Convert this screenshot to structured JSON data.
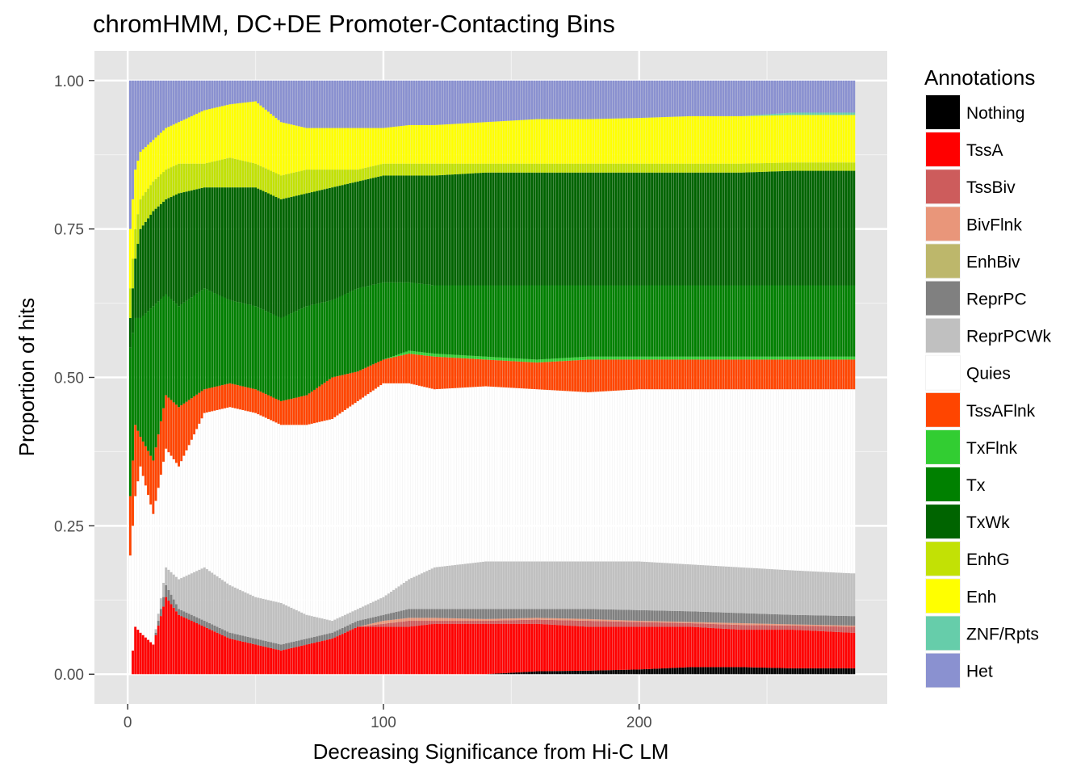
{
  "colors": {
    "panel_bg": "#E5E5E5",
    "grid_major": "#FFFFFF",
    "axis_text": "#4D4D4D",
    "text": "#000000"
  },
  "chart_data": {
    "type": "bar",
    "stacked": true,
    "stacked_to_one": true,
    "title": "chromHMM, DC+DE Promoter-Contacting Bins",
    "xlabel": "Decreasing Significance from Hi-C LM",
    "ylabel": "Proportion of hits",
    "xlim": [
      -13,
      297
    ],
    "ylim": [
      -0.05,
      1.05
    ],
    "x_ticks": [
      0,
      100,
      200
    ],
    "x_tick_labels": [
      "0",
      "100",
      "200"
    ],
    "y_ticks": [
      0,
      0.25,
      0.5,
      0.75,
      1
    ],
    "y_tick_labels": [
      "0.00",
      "0.25",
      "0.50",
      "0.75",
      "1.00"
    ],
    "n_bars": 284,
    "legend": {
      "title": "Annotations",
      "position": "right"
    },
    "series": [
      {
        "name": "Nothing",
        "color": "#000000"
      },
      {
        "name": "TssA",
        "color": "#FF0000"
      },
      {
        "name": "TssBiv",
        "color": "#CD5C5C"
      },
      {
        "name": "BivFlnk",
        "color": "#E9967A"
      },
      {
        "name": "EnhBiv",
        "color": "#BDB76B"
      },
      {
        "name": "ReprPC",
        "color": "#808080"
      },
      {
        "name": "ReprPCWk",
        "color": "#C0C0C0"
      },
      {
        "name": "Quies",
        "color": "#FFFFFF"
      },
      {
        "name": "TssAFlnk",
        "color": "#FF4500"
      },
      {
        "name": "TxFlnk",
        "color": "#32CD32"
      },
      {
        "name": "Tx",
        "color": "#008000"
      },
      {
        "name": "TxWk",
        "color": "#006400"
      },
      {
        "name": "EnhG",
        "color": "#C2E105"
      },
      {
        "name": "Enh",
        "color": "#FFFF00"
      },
      {
        "name": "ZNF/Rpts",
        "color": "#66CDAA"
      },
      {
        "name": "Het",
        "color": "#8A91D0"
      }
    ],
    "cumulative_boundaries_at_x": {
      "x": [
        1,
        3,
        5,
        10,
        15,
        20,
        30,
        40,
        50,
        60,
        70,
        80,
        90,
        100,
        110,
        120,
        140,
        160,
        180,
        200,
        220,
        240,
        260,
        283
      ],
      "Nothing": [
        0,
        0,
        0,
        0,
        0,
        0,
        0,
        0,
        0,
        0,
        0,
        0,
        0,
        0,
        0,
        0,
        0,
        0.005,
        0.006,
        0.008,
        0.012,
        0.012,
        0.01,
        0.01
      ],
      "TssA": [
        0,
        0.08,
        0.07,
        0.05,
        0.13,
        0.1,
        0.08,
        0.06,
        0.05,
        0.04,
        0.05,
        0.06,
        0.08,
        0.08,
        0.08,
        0.085,
        0.085,
        0.085,
        0.08,
        0.08,
        0.08,
        0.075,
        0.075,
        0.07
      ],
      "TssBiv": [
        0,
        0.08,
        0.07,
        0.05,
        0.13,
        0.1,
        0.08,
        0.06,
        0.05,
        0.04,
        0.05,
        0.06,
        0.08,
        0.085,
        0.09,
        0.09,
        0.09,
        0.092,
        0.09,
        0.088,
        0.086,
        0.083,
        0.082,
        0.08
      ],
      "BivFlnk": [
        0,
        0.08,
        0.07,
        0.05,
        0.13,
        0.1,
        0.08,
        0.06,
        0.05,
        0.04,
        0.05,
        0.06,
        0.08,
        0.09,
        0.095,
        0.095,
        0.093,
        0.095,
        0.093,
        0.09,
        0.088,
        0.086,
        0.084,
        0.082
      ],
      "EnhBiv": [
        0,
        0.08,
        0.07,
        0.05,
        0.13,
        0.1,
        0.08,
        0.06,
        0.05,
        0.04,
        0.05,
        0.06,
        0.08,
        0.09,
        0.095,
        0.095,
        0.093,
        0.095,
        0.093,
        0.09,
        0.088,
        0.086,
        0.084,
        0.082
      ],
      "ReprPC": [
        0,
        0.08,
        0.07,
        0.05,
        0.15,
        0.11,
        0.09,
        0.07,
        0.06,
        0.05,
        0.06,
        0.07,
        0.09,
        0.1,
        0.11,
        0.11,
        0.11,
        0.11,
        0.11,
        0.108,
        0.106,
        0.103,
        0.1,
        0.098
      ],
      "ReprPCWk": [
        0,
        0.08,
        0.07,
        0.05,
        0.18,
        0.16,
        0.18,
        0.15,
        0.13,
        0.12,
        0.1,
        0.09,
        0.11,
        0.13,
        0.16,
        0.18,
        0.19,
        0.19,
        0.19,
        0.19,
        0.185,
        0.18,
        0.175,
        0.17
      ],
      "Quies": [
        0.2,
        0.3,
        0.35,
        0.27,
        0.38,
        0.35,
        0.44,
        0.45,
        0.44,
        0.42,
        0.42,
        0.43,
        0.46,
        0.49,
        0.49,
        0.48,
        0.485,
        0.48,
        0.475,
        0.48,
        0.48,
        0.48,
        0.48,
        0.48
      ],
      "TssAFlnk": [
        0.3,
        0.42,
        0.4,
        0.36,
        0.47,
        0.45,
        0.48,
        0.49,
        0.48,
        0.46,
        0.47,
        0.5,
        0.51,
        0.53,
        0.54,
        0.535,
        0.53,
        0.525,
        0.53,
        0.53,
        0.53,
        0.53,
        0.53,
        0.53
      ],
      "TxFlnk": [
        0.3,
        0.42,
        0.4,
        0.36,
        0.47,
        0.45,
        0.48,
        0.49,
        0.48,
        0.46,
        0.47,
        0.5,
        0.51,
        0.53,
        0.545,
        0.54,
        0.535,
        0.53,
        0.535,
        0.535,
        0.535,
        0.535,
        0.535,
        0.535
      ],
      "Tx": [
        0.55,
        0.6,
        0.6,
        0.62,
        0.64,
        0.62,
        0.65,
        0.63,
        0.62,
        0.6,
        0.62,
        0.63,
        0.65,
        0.66,
        0.66,
        0.655,
        0.655,
        0.655,
        0.655,
        0.655,
        0.655,
        0.655,
        0.655,
        0.655
      ],
      "TxWk": [
        0.6,
        0.7,
        0.75,
        0.78,
        0.8,
        0.81,
        0.82,
        0.82,
        0.82,
        0.8,
        0.81,
        0.82,
        0.83,
        0.84,
        0.84,
        0.84,
        0.845,
        0.845,
        0.845,
        0.845,
        0.845,
        0.845,
        0.848,
        0.848
      ],
      "EnhG": [
        0.65,
        0.75,
        0.8,
        0.83,
        0.85,
        0.86,
        0.86,
        0.87,
        0.86,
        0.84,
        0.85,
        0.85,
        0.85,
        0.86,
        0.86,
        0.86,
        0.86,
        0.86,
        0.86,
        0.86,
        0.86,
        0.86,
        0.862,
        0.862
      ],
      "Enh": [
        0.75,
        0.85,
        0.88,
        0.9,
        0.92,
        0.93,
        0.95,
        0.96,
        0.965,
        0.93,
        0.92,
        0.92,
        0.92,
        0.92,
        0.925,
        0.925,
        0.93,
        0.935,
        0.935,
        0.937,
        0.94,
        0.94,
        0.942,
        0.942
      ],
      "ZNF/Rpts": [
        0.75,
        0.85,
        0.88,
        0.9,
        0.92,
        0.93,
        0.95,
        0.96,
        0.965,
        0.93,
        0.92,
        0.92,
        0.92,
        0.92,
        0.925,
        0.925,
        0.93,
        0.935,
        0.935,
        0.937,
        0.94,
        0.94,
        0.946,
        0.946
      ],
      "Het": [
        1,
        1,
        1,
        1,
        1,
        1,
        1,
        1,
        1,
        1,
        1,
        1,
        1,
        1,
        1,
        1,
        1,
        1,
        1,
        1,
        1,
        1,
        1,
        1
      ]
    }
  }
}
